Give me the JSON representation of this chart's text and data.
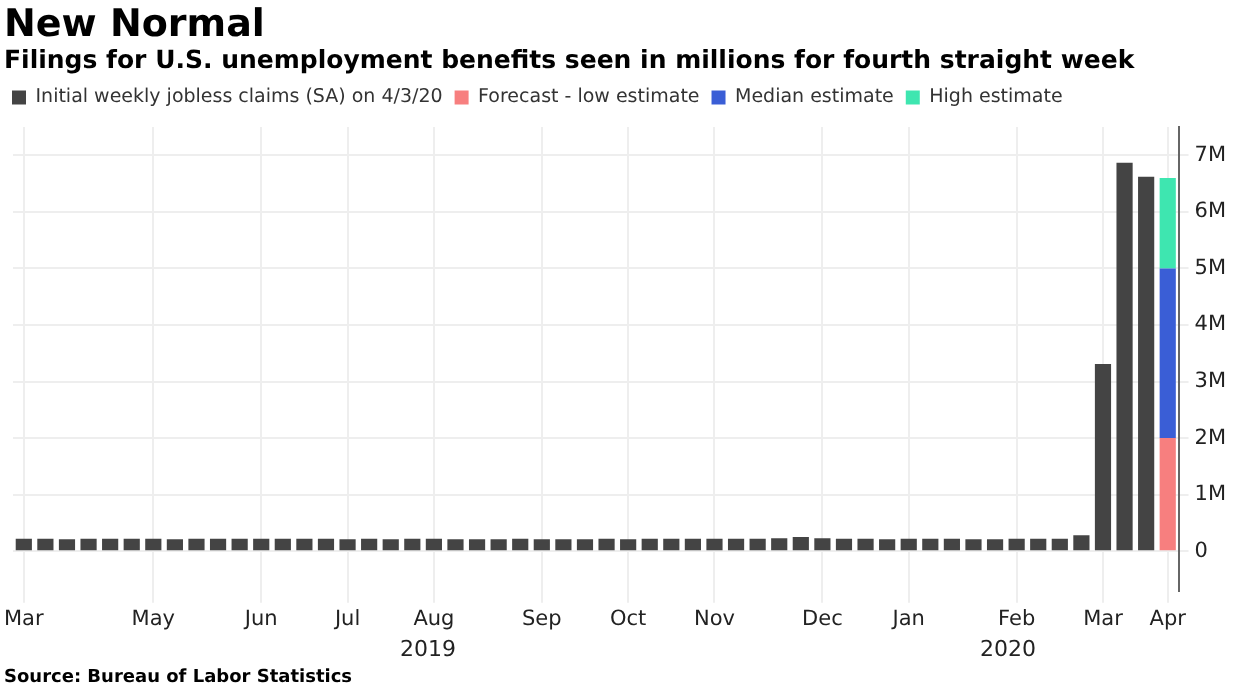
{
  "chart_data": {
    "type": "bar",
    "title": "New Normal",
    "subtitle": "Filings for U.S. unemployment benefits seen in millions for fourth straight week",
    "categories": [
      "Mar",
      null,
      null,
      null,
      null,
      null,
      "May",
      null,
      null,
      null,
      null,
      "Jun",
      null,
      null,
      null,
      "Jul",
      null,
      null,
      null,
      "Aug",
      null,
      null,
      null,
      null,
      "Sep",
      null,
      null,
      null,
      "Oct",
      null,
      null,
      null,
      "Nov",
      null,
      null,
      null,
      null,
      "Dec",
      null,
      null,
      null,
      "Jan",
      null,
      null,
      null,
      null,
      "Feb",
      null,
      null,
      null,
      "Mar",
      null,
      null,
      "Apr"
    ],
    "stacked": true,
    "series": [
      {
        "name": "Initial weekly jobless claims (SA) on 4/3/20",
        "color": "#444444",
        "values": [
          0.22,
          0.22,
          0.21,
          0.22,
          0.22,
          0.22,
          0.22,
          0.21,
          0.22,
          0.22,
          0.22,
          0.22,
          0.22,
          0.22,
          0.22,
          0.21,
          0.22,
          0.21,
          0.22,
          0.22,
          0.21,
          0.21,
          0.21,
          0.22,
          0.21,
          0.21,
          0.21,
          0.22,
          0.21,
          0.22,
          0.22,
          0.22,
          0.22,
          0.22,
          0.22,
          0.23,
          0.25,
          0.23,
          0.22,
          0.22,
          0.21,
          0.22,
          0.22,
          0.22,
          0.21,
          0.21,
          0.22,
          0.22,
          0.22,
          0.28,
          3.31,
          6.87,
          6.62,
          null
        ]
      },
      {
        "name": "Forecast - low estimate",
        "color": "#f77f7f",
        "values": [
          null,
          null,
          null,
          null,
          null,
          null,
          null,
          null,
          null,
          null,
          null,
          null,
          null,
          null,
          null,
          null,
          null,
          null,
          null,
          null,
          null,
          null,
          null,
          null,
          null,
          null,
          null,
          null,
          null,
          null,
          null,
          null,
          null,
          null,
          null,
          null,
          null,
          null,
          null,
          null,
          null,
          null,
          null,
          null,
          null,
          null,
          null,
          null,
          null,
          null,
          null,
          null,
          null,
          2.0
        ]
      },
      {
        "name": "Median estimate",
        "color": "#3a5ed6",
        "values": [
          null,
          null,
          null,
          null,
          null,
          null,
          null,
          null,
          null,
          null,
          null,
          null,
          null,
          null,
          null,
          null,
          null,
          null,
          null,
          null,
          null,
          null,
          null,
          null,
          null,
          null,
          null,
          null,
          null,
          null,
          null,
          null,
          null,
          null,
          null,
          null,
          null,
          null,
          null,
          null,
          null,
          null,
          null,
          null,
          null,
          null,
          null,
          null,
          null,
          null,
          null,
          null,
          null,
          3.0
        ]
      },
      {
        "name": "High estimate",
        "color": "#3ee6b0",
        "values": [
          null,
          null,
          null,
          null,
          null,
          null,
          null,
          null,
          null,
          null,
          null,
          null,
          null,
          null,
          null,
          null,
          null,
          null,
          null,
          null,
          null,
          null,
          null,
          null,
          null,
          null,
          null,
          null,
          null,
          null,
          null,
          null,
          null,
          null,
          null,
          null,
          null,
          null,
          null,
          null,
          null,
          null,
          null,
          null,
          null,
          null,
          null,
          null,
          null,
          null,
          null,
          null,
          null,
          1.6
        ]
      }
    ],
    "ylim": [
      -0.7,
      7.5
    ],
    "yticks": [
      0,
      {
        "value": 1,
        "label": "1M"
      },
      {
        "value": 2,
        "label": "2M"
      },
      {
        "value": 3,
        "label": "3M"
      },
      {
        "value": 4,
        "label": "4M"
      },
      {
        "value": 5,
        "label": "5M"
      },
      {
        "value": 6,
        "label": "6M"
      },
      {
        "value": 7,
        "label": "7M"
      }
    ],
    "grid": true,
    "legend": "top left",
    "annotations": [
      "2019",
      "2020",
      "Source: Bureau of Labor Statistics"
    ]
  }
}
